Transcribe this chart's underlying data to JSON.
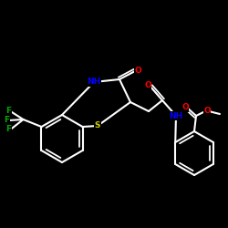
{
  "bg_color": "#000000",
  "bond_color": "#ffffff",
  "bond_width": 1.5,
  "atom_colors": {
    "N": "#0000ff",
    "O": "#ff0000",
    "S": "#cccc00",
    "F": "#00aa00",
    "C": "#ffffff"
  },
  "font_size_atom": 6.5,
  "figsize": [
    2.5,
    2.5
  ],
  "dpi": 100,
  "xlim": [
    0,
    250
  ],
  "ylim": [
    0,
    250
  ]
}
